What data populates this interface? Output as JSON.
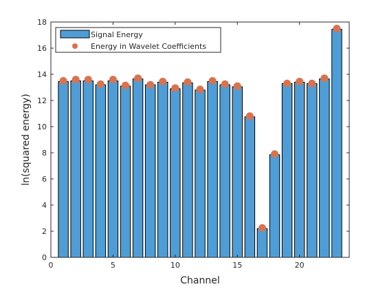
{
  "chart_data": {
    "type": "bar",
    "xlabel": "Channel",
    "ylabel": "ln(squared energy)",
    "xlim": [
      0,
      24
    ],
    "ylim": [
      0,
      18
    ],
    "xticks": [
      0,
      5,
      10,
      15,
      20
    ],
    "yticks": [
      0,
      2,
      4,
      6,
      8,
      10,
      12,
      14,
      16,
      18
    ],
    "grid": false,
    "legend_position": "top-left",
    "categories": [
      1,
      2,
      3,
      4,
      5,
      6,
      7,
      8,
      9,
      10,
      11,
      12,
      13,
      14,
      15,
      16,
      17,
      18,
      19,
      20,
      21,
      22,
      23
    ],
    "series": [
      {
        "name": "Signal Energy",
        "kind": "bar",
        "color": "#4f9dd6",
        "values": [
          13.45,
          13.5,
          13.5,
          13.2,
          13.5,
          13.1,
          13.65,
          13.2,
          13.4,
          12.9,
          13.35,
          12.8,
          13.45,
          13.2,
          13.05,
          10.75,
          2.2,
          7.85,
          13.3,
          13.4,
          13.3,
          13.65,
          17.45
        ]
      },
      {
        "name": "Energy in Wavelet Coefficients",
        "kind": "marker",
        "color": "#d9734f",
        "values": [
          13.5,
          13.6,
          13.6,
          13.25,
          13.6,
          13.15,
          13.7,
          13.2,
          13.45,
          12.95,
          13.4,
          12.85,
          13.5,
          13.25,
          13.1,
          10.8,
          2.25,
          7.9,
          13.3,
          13.45,
          13.3,
          13.7,
          17.5
        ]
      }
    ]
  }
}
